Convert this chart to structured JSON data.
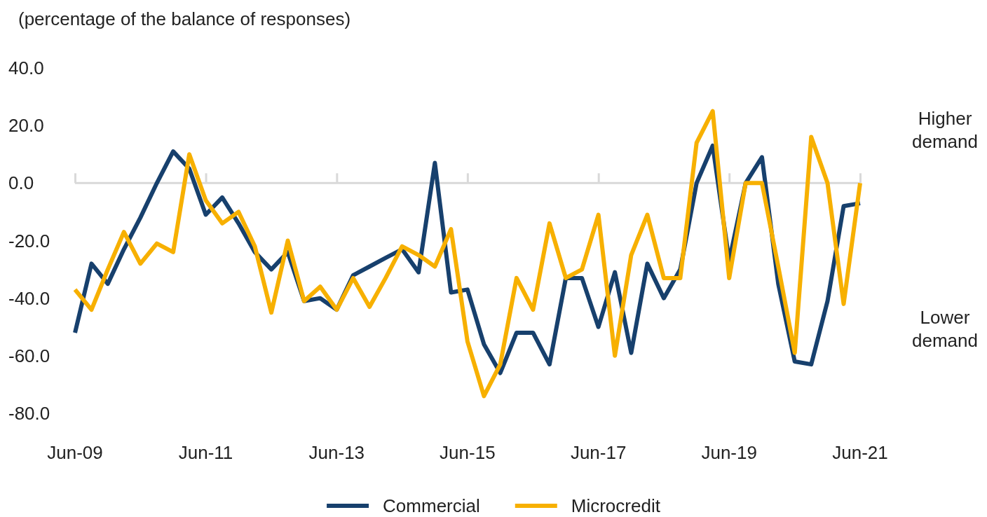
{
  "chart_data": {
    "type": "line",
    "ylabel": "(percentage of the balance of responses)",
    "x": [
      "2009-06",
      "2009-09",
      "2009-12",
      "2010-03",
      "2010-06",
      "2010-09",
      "2010-12",
      "2011-03",
      "2011-06",
      "2011-09",
      "2011-12",
      "2012-03",
      "2012-06",
      "2012-09",
      "2012-12",
      "2013-03",
      "2013-06",
      "2013-09",
      "2013-12",
      "2014-03",
      "2014-06",
      "2014-09",
      "2014-12",
      "2015-03",
      "2015-06",
      "2015-09",
      "2015-12",
      "2016-03",
      "2016-06",
      "2016-09",
      "2016-12",
      "2017-03",
      "2017-06",
      "2017-09",
      "2017-12",
      "2018-03",
      "2018-06",
      "2018-09",
      "2018-12",
      "2019-03",
      "2019-06",
      "2019-09",
      "2019-12",
      "2020-03",
      "2020-06",
      "2020-09",
      "2020-12",
      "2021-03",
      "2021-06"
    ],
    "series": [
      {
        "name": "Commercial",
        "color": "#17406d",
        "values": [
          -52,
          -28,
          -35,
          -23,
          -12,
          0,
          11,
          5,
          -11,
          -5,
          -14,
          -24,
          -30,
          -24,
          -41,
          -40,
          -44,
          -32,
          -29,
          -26,
          -23,
          -31,
          7,
          -38,
          -37,
          -56,
          -66,
          -52,
          -52,
          -63,
          -33,
          -33,
          -50,
          -31,
          -59,
          -28,
          -40,
          -30,
          0,
          13,
          -27,
          0,
          9,
          -35,
          -62,
          -63,
          -41,
          -8,
          -7
        ]
      },
      {
        "name": "Microcredit",
        "color": "#f7b000",
        "values": [
          -37,
          -44,
          -30,
          -17,
          -28,
          -21,
          -24,
          10,
          -6,
          -14,
          -10,
          -22,
          -45,
          -20,
          -41,
          -36,
          -44,
          -33,
          -43,
          -33,
          -22,
          -25,
          -29,
          -16,
          -55,
          -74,
          -63,
          -33,
          -44,
          -14,
          -33,
          -30,
          -11,
          -60,
          -25,
          -11,
          -33,
          -33,
          14,
          25,
          -33,
          0,
          0,
          -29,
          -59,
          16,
          0,
          -42,
          0
        ]
      }
    ],
    "xlim": [
      "2009-06",
      "2021-06"
    ],
    "xticks": [
      {
        "value": "2009-06",
        "label": "Jun-09"
      },
      {
        "value": "2011-06",
        "label": "Jun-11"
      },
      {
        "value": "2013-06",
        "label": "Jun-13"
      },
      {
        "value": "2015-06",
        "label": "Jun-15"
      },
      {
        "value": "2017-06",
        "label": "Jun-17"
      },
      {
        "value": "2019-06",
        "label": "Jun-19"
      },
      {
        "value": "2021-06",
        "label": "Jun-21"
      }
    ],
    "ylim": [
      -80,
      40
    ],
    "yticks": [
      {
        "value": -80,
        "label": "-80.0"
      },
      {
        "value": -60,
        "label": "-60.0"
      },
      {
        "value": -40,
        "label": "-40.0"
      },
      {
        "value": -20,
        "label": "-20.0"
      },
      {
        "value": 0,
        "label": "0.0"
      },
      {
        "value": 20,
        "label": "20.0"
      },
      {
        "value": 40,
        "label": "40.0"
      }
    ],
    "annotations": [
      "Higher demand",
      "Lower demand"
    ],
    "ref_lines": [
      {
        "axis": "y",
        "value": 0,
        "color": "#d9d9d9"
      }
    ],
    "legend": "bottom",
    "grid": false,
    "marker": "none",
    "line_style": "solid"
  }
}
